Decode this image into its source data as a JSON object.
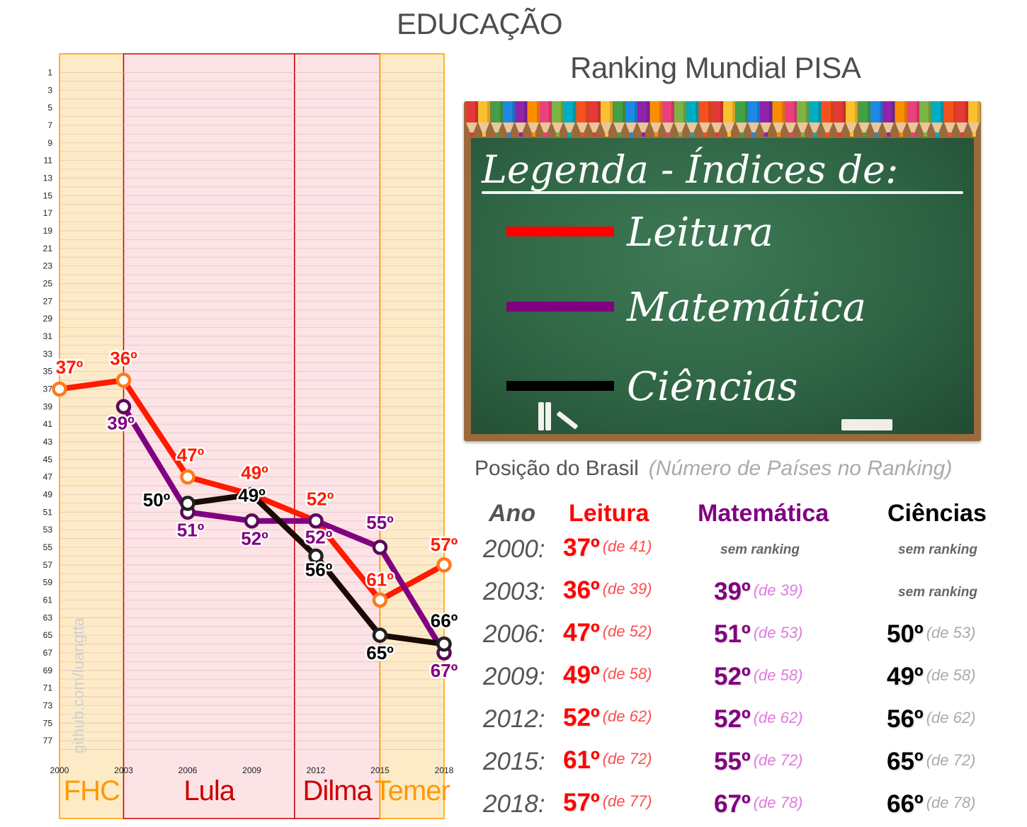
{
  "title": "EDUCAÇÃO",
  "subtitle": "Ranking Mundial PISA",
  "watermark": "github.com/luangtta",
  "legend": {
    "title": "Legenda - Índices de:",
    "items": [
      {
        "label": "Leitura",
        "color": "#ff0000"
      },
      {
        "label": "Matemática",
        "color": "#800080"
      },
      {
        "label": "Ciências",
        "color": "#000000"
      }
    ]
  },
  "table": {
    "heading": "Posição do Brasil",
    "note": "(Número de Países no Ranking)",
    "headers": [
      "Ano",
      "Leitura",
      "Matemática",
      "Ciências"
    ],
    "no_rank": "sem ranking",
    "rows": [
      {
        "year": "2000:",
        "leitura": "37º",
        "leitura_of": "(de 41)",
        "mat": "",
        "mat_of": "",
        "cien": "",
        "cien_of": ""
      },
      {
        "year": "2003:",
        "leitura": "36º",
        "leitura_of": "(de 39)",
        "mat": "39º",
        "mat_of": "(de 39)",
        "cien": "",
        "cien_of": ""
      },
      {
        "year": "2006:",
        "leitura": "47º",
        "leitura_of": "(de 52)",
        "mat": "51º",
        "mat_of": "(de 53)",
        "cien": "50º",
        "cien_of": "(de 53)"
      },
      {
        "year": "2009:",
        "leitura": "49º",
        "leitura_of": "(de 58)",
        "mat": "52º",
        "mat_of": "(de 58)",
        "cien": "49º",
        "cien_of": "(de 58)"
      },
      {
        "year": "2012:",
        "leitura": "52º",
        "leitura_of": "(de 62)",
        "mat": "52º",
        "mat_of": "(de 62)",
        "cien": "56º",
        "cien_of": "(de 62)"
      },
      {
        "year": "2015:",
        "leitura": "61º",
        "leitura_of": "(de 72)",
        "mat": "55º",
        "mat_of": "(de 72)",
        "cien": "65º",
        "cien_of": "(de 72)"
      },
      {
        "year": "2018:",
        "leitura": "57º",
        "leitura_of": "(de 77)",
        "mat": "67º",
        "mat_of": "(de 78)",
        "cien": "66º",
        "cien_of": "(de 78)"
      }
    ]
  },
  "chart_data": {
    "type": "line",
    "title": "",
    "x": [
      2000,
      2003,
      2006,
      2009,
      2012,
      2015,
      2018
    ],
    "x_tick_labels": [
      "2000",
      "2003",
      "2006",
      "2009",
      "2012",
      "2015",
      "2018"
    ],
    "y_ticks": [
      1,
      3,
      5,
      7,
      9,
      11,
      13,
      15,
      17,
      19,
      21,
      23,
      25,
      27,
      29,
      31,
      33,
      35,
      37,
      39,
      41,
      43,
      45,
      47,
      49,
      51,
      53,
      55,
      57,
      59,
      61,
      63,
      65,
      67,
      69,
      71,
      73,
      75,
      77
    ],
    "ylim": [
      0,
      79
    ],
    "y_inverted": true,
    "grid": true,
    "periods": [
      {
        "name": "FHC",
        "start": 2000,
        "end": 2003,
        "color": "#ff9900",
        "fill": "#fdebc8"
      },
      {
        "name": "Lula",
        "start": 2003,
        "end": 2011,
        "color": "#cc0000",
        "fill": "#fce3e6"
      },
      {
        "name": "Dilma",
        "start": 2011,
        "end": 2015,
        "color": "#cc0000",
        "fill": "#fce3e6"
      },
      {
        "name": "Temer",
        "start": 2015,
        "end": 2018,
        "color": "#ff9900",
        "fill": "#fdebc8"
      }
    ],
    "series": [
      {
        "name": "Leitura",
        "color": "#ff1a00",
        "marker": "#ff7a1a",
        "x": [
          2000,
          2003,
          2006,
          2009,
          2012,
          2015,
          2018
        ],
        "values": [
          37,
          36,
          47,
          49,
          52,
          61,
          57
        ],
        "labels": [
          "37º",
          "36º",
          "47º",
          "49º",
          "52º",
          "61º",
          "57º"
        ]
      },
      {
        "name": "Matemática",
        "color": "#800080",
        "marker": "#5a0a5a",
        "x": [
          2003,
          2006,
          2009,
          2012,
          2015,
          2018
        ],
        "values": [
          39,
          51,
          52,
          52,
          55,
          67
        ],
        "labels": [
          "39º",
          "51º",
          "52º",
          "52º",
          "55º",
          "67º"
        ]
      },
      {
        "name": "Ciências",
        "color": "#1a0a05",
        "marker": "#222222",
        "x": [
          2006,
          2009,
          2012,
          2015,
          2018
        ],
        "values": [
          50,
          49,
          56,
          65,
          66
        ],
        "labels": [
          "50º",
          "49º",
          "56º",
          "65º",
          "66º"
        ]
      }
    ]
  }
}
